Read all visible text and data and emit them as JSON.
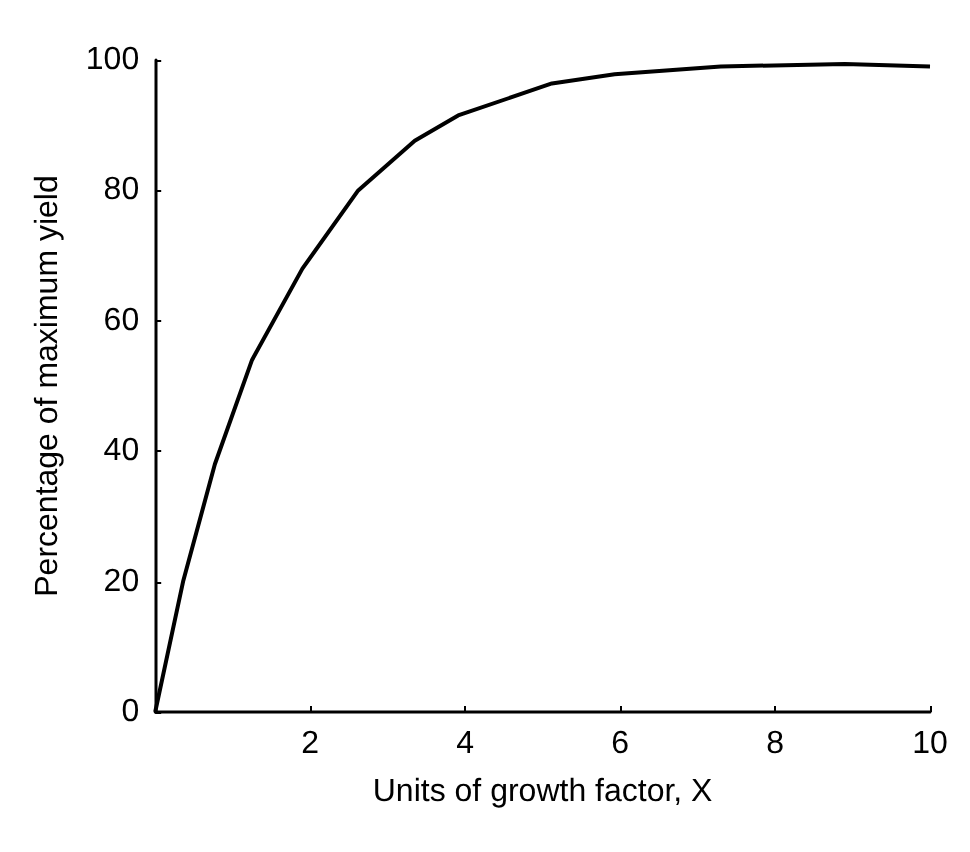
{
  "chart_data": {
    "type": "line",
    "xlabel": "Units of growth factor, X",
    "ylabel": "Percentage of maximum yield",
    "series": [
      {
        "color": "#000000",
        "x": [
          0,
          0.36,
          0.77,
          1.25,
          1.9,
          2.62,
          3.35,
          3.91,
          5.12,
          5.93,
          7.3,
          8.9,
          10
        ],
        "values": [
          0,
          20,
          38,
          54,
          68,
          80,
          87.6,
          91.5,
          96.4,
          97.8,
          99,
          99.4,
          99
        ]
      }
    ],
    "xlim": [
      0,
      10
    ],
    "xticks": [
      2,
      4,
      6,
      8,
      10
    ],
    "ylim": [
      0,
      100
    ],
    "yticks": [
      0,
      20,
      40,
      60,
      80,
      100
    ],
    "grid": false,
    "marker": "none",
    "line_style": "solid"
  }
}
